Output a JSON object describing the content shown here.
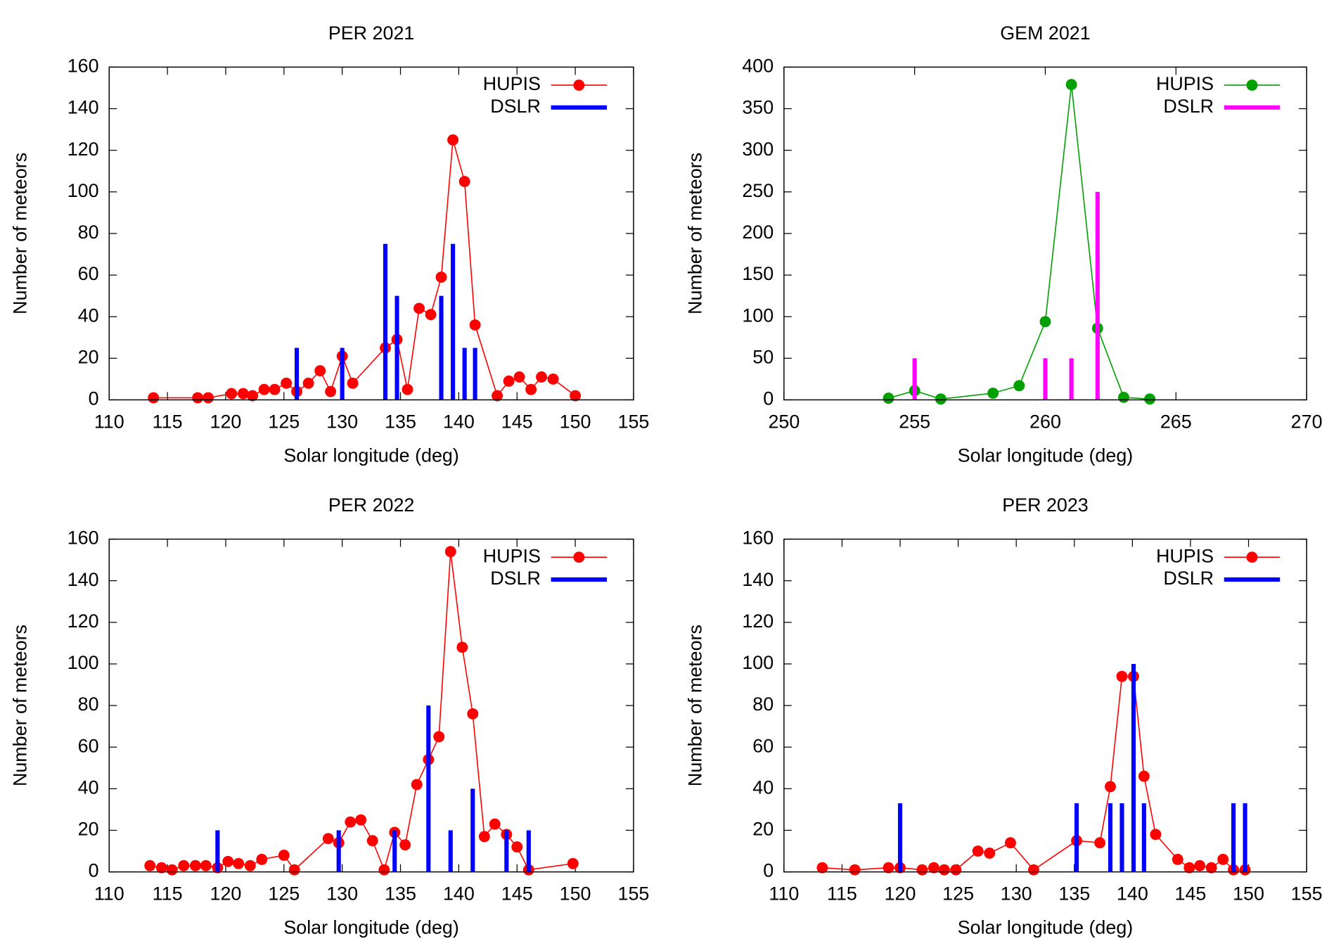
{
  "chart_data": [
    {
      "type": "line",
      "title": "PER 2021",
      "x_label": "Solar longitude (deg)",
      "y_label": "Number of meteors",
      "xlim": [
        110,
        155
      ],
      "xticks": [
        110,
        115,
        120,
        125,
        130,
        135,
        140,
        145,
        150,
        155
      ],
      "ylim": [
        0,
        160
      ],
      "yticks": [
        0,
        20,
        40,
        60,
        80,
        100,
        120,
        140,
        160
      ],
      "legend": "top-right",
      "series": [
        {
          "name": "HUPIS",
          "type": "line",
          "color": "#ff0000",
          "x": [
            113.8,
            117.6,
            118.5,
            120.5,
            121.5,
            122.3,
            123.3,
            124.2,
            125.2,
            126.1,
            127.1,
            128.1,
            129,
            130,
            130.9,
            133.7,
            134.7,
            135.6,
            136.6,
            137.6,
            138.5,
            139.5,
            140.5,
            141.4,
            143.3,
            144.3,
            145.2,
            146.2,
            147.1,
            148.1,
            150
          ],
          "values": [
            1,
            1,
            1,
            3,
            3,
            2,
            5,
            5,
            8,
            4,
            8,
            14,
            4,
            21,
            8,
            25,
            29,
            5,
            44,
            41,
            59,
            125,
            105,
            36,
            2,
            9,
            11,
            5,
            11,
            10,
            2
          ]
        },
        {
          "name": "DSLR",
          "type": "bar",
          "color": "#0000ff",
          "x": [
            126.1,
            130,
            133.7,
            134.7,
            138.5,
            139.5,
            140.5,
            141.4
          ],
          "values": [
            25,
            25,
            75,
            50,
            50,
            75,
            25,
            25
          ]
        }
      ]
    },
    {
      "type": "line",
      "title": "GEM 2021",
      "x_label": "Solar longitude (deg)",
      "y_label": "Number of meteors",
      "xlim": [
        250,
        270
      ],
      "xticks": [
        250,
        255,
        260,
        265,
        270
      ],
      "ylim": [
        0,
        400
      ],
      "yticks": [
        0,
        50,
        100,
        150,
        200,
        250,
        300,
        350,
        400
      ],
      "legend": "top-right",
      "series": [
        {
          "name": "HUPIS",
          "type": "line",
          "color": "#00a000",
          "x": [
            254,
            255,
            256,
            258,
            259,
            260,
            261,
            262,
            263,
            264
          ],
          "values": [
            2,
            11,
            1,
            8,
            17,
            94,
            379,
            86,
            3,
            1
          ]
        },
        {
          "name": "DSLR",
          "type": "bar",
          "color": "#ff00ff",
          "x": [
            255,
            260,
            261,
            262
          ],
          "values": [
            50,
            50,
            50,
            250
          ]
        }
      ]
    },
    {
      "type": "line",
      "title": "PER 2022",
      "x_label": "Solar longitude (deg)",
      "y_label": "Number of meteors",
      "xlim": [
        110,
        155
      ],
      "xticks": [
        110,
        115,
        120,
        125,
        130,
        135,
        140,
        145,
        150,
        155
      ],
      "ylim": [
        0,
        160
      ],
      "yticks": [
        0,
        20,
        40,
        60,
        80,
        100,
        120,
        140,
        160
      ],
      "legend": "top-right",
      "series": [
        {
          "name": "HUPIS",
          "type": "line",
          "color": "#ff0000",
          "x": [
            113.5,
            114.5,
            115.4,
            116.4,
            117.4,
            118.3,
            119.3,
            120.2,
            121.1,
            122.1,
            123.1,
            125,
            125.9,
            128.8,
            129.7,
            130.7,
            131.6,
            132.6,
            133.6,
            134.5,
            135.4,
            136.4,
            137.4,
            138.3,
            139.3,
            140.3,
            141.2,
            142.2,
            143.1,
            144.1,
            145,
            146,
            149.8
          ],
          "values": [
            3,
            2,
            1,
            3,
            3,
            3,
            2,
            5,
            4,
            3,
            6,
            8,
            1,
            16,
            14,
            24,
            25,
            15,
            1,
            19,
            13,
            42,
            54,
            65,
            154,
            108,
            76,
            17,
            23,
            18,
            12,
            1,
            4
          ]
        },
        {
          "name": "DSLR",
          "type": "bar",
          "color": "#0000ff",
          "x": [
            119.3,
            129.7,
            134.5,
            137.4,
            139.3,
            141.2,
            144.1,
            146
          ],
          "values": [
            20,
            20,
            20,
            80,
            20,
            40,
            20,
            20
          ]
        }
      ]
    },
    {
      "type": "line",
      "title": "PER 2023",
      "x_label": "Solar longitude (deg)",
      "y_label": "Number of meteors",
      "xlim": [
        110,
        155
      ],
      "xticks": [
        110,
        115,
        120,
        125,
        130,
        135,
        140,
        145,
        150,
        155
      ],
      "ylim": [
        0,
        160
      ],
      "yticks": [
        0,
        20,
        40,
        60,
        80,
        100,
        120,
        140,
        160
      ],
      "legend": "top-right",
      "series": [
        {
          "name": "HUPIS",
          "type": "line",
          "color": "#ff0000",
          "x": [
            113.3,
            116.1,
            119,
            120,
            121.9,
            122.9,
            123.8,
            124.8,
            126.7,
            127.7,
            129.5,
            131.5,
            135.2,
            137.2,
            138.1,
            139.1,
            140.1,
            141,
            142,
            143.9,
            144.9,
            145.8,
            146.8,
            147.8,
            148.7,
            149.7
          ],
          "values": [
            2,
            1,
            2,
            2,
            1,
            2,
            1,
            1,
            10,
            9,
            14,
            1,
            15,
            14,
            41,
            94,
            94,
            46,
            18,
            6,
            2,
            3,
            2,
            6,
            1,
            1
          ]
        },
        {
          "name": "DSLR",
          "type": "bar",
          "color": "#0000ff",
          "x": [
            120,
            135.2,
            138.1,
            139.1,
            140.1,
            141,
            148.7,
            149.7
          ],
          "values": [
            33,
            33,
            33,
            33,
            100,
            33,
            33,
            33
          ]
        }
      ]
    }
  ]
}
